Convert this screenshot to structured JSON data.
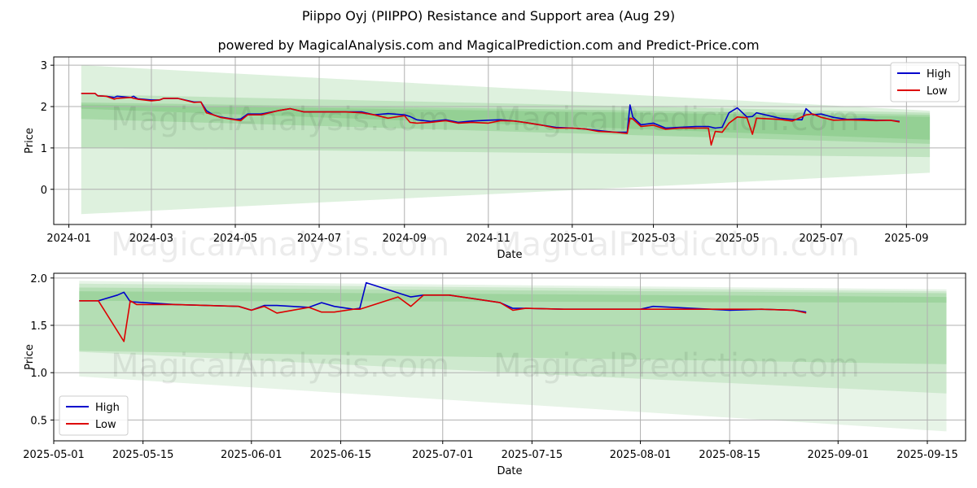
{
  "title": "Piippo Oyj (PIIPPO) Resistance and Support area (Aug 29)",
  "subtitle": "powered by MagicalAnalysis.com and MagicalPrediction.com and Predict-Price.com",
  "watermarks": [
    "MagicalAnalysis.com",
    "MagicalPrediction.com"
  ],
  "colors": {
    "high": "#0000cc",
    "low": "#dd0000",
    "band": "#5cb85c"
  },
  "chart_data": [
    {
      "type": "line",
      "xlabel": "Date",
      "ylabel": "Price",
      "xlim": [
        "2023-12-21",
        "2025-10-14"
      ],
      "ylim": [
        -0.85,
        3.2
      ],
      "xticks": [
        "2024-01",
        "2024-03",
        "2024-05",
        "2024-07",
        "2024-09",
        "2024-11",
        "2025-01",
        "2025-03",
        "2025-05",
        "2025-07",
        "2025-09"
      ],
      "yticks": [
        0,
        1,
        2,
        3
      ],
      "grid": true,
      "legend": "top-right",
      "bands": [
        {
          "x": [
            "2024-01-10",
            "2025-09-18"
          ],
          "upper": [
            3.0,
            1.9
          ],
          "lower": [
            -0.6,
            0.4
          ],
          "opacity": 0.2
        },
        {
          "x": [
            "2024-01-10",
            "2025-09-18"
          ],
          "upper": [
            2.3,
            1.85
          ],
          "lower": [
            1.0,
            0.78
          ],
          "opacity": 0.22
        },
        {
          "x": [
            "2024-01-10",
            "2025-09-18"
          ],
          "upper": [
            2.1,
            1.8
          ],
          "lower": [
            1.7,
            1.1
          ],
          "opacity": 0.25
        },
        {
          "x": [
            "2024-01-10",
            "2025-09-18"
          ],
          "upper": [
            2.05,
            1.75
          ],
          "lower": [
            1.95,
            1.2
          ],
          "opacity": 0.25
        }
      ],
      "series": [
        {
          "name": "High",
          "x": [
            "2024-01-10",
            "2024-01-20",
            "2024-01-22",
            "2024-01-28",
            "2024-02-03",
            "2024-02-05",
            "2024-02-15",
            "2024-02-17",
            "2024-02-20",
            "2024-03-01",
            "2024-03-07",
            "2024-03-10",
            "2024-03-20",
            "2024-04-01",
            "2024-04-06",
            "2024-04-10",
            "2024-04-15",
            "2024-04-20",
            "2024-05-01",
            "2024-05-05",
            "2024-05-10",
            "2024-05-20",
            "2024-06-01",
            "2024-06-10",
            "2024-06-20",
            "2024-07-01",
            "2024-07-20",
            "2024-08-01",
            "2024-08-10",
            "2024-08-20",
            "2024-09-01",
            "2024-09-05",
            "2024-09-10",
            "2024-09-20",
            "2024-10-01",
            "2024-10-10",
            "2024-10-20",
            "2024-11-01",
            "2024-11-10",
            "2024-11-20",
            "2024-12-01",
            "2024-12-10",
            "2024-12-20",
            "2025-01-01",
            "2025-01-10",
            "2025-01-20",
            "2025-02-01",
            "2025-02-10",
            "2025-02-12",
            "2025-02-14",
            "2025-02-20",
            "2025-03-01",
            "2025-03-10",
            "2025-03-20",
            "2025-04-01",
            "2025-04-10",
            "2025-04-15",
            "2025-04-20",
            "2025-04-25",
            "2025-05-01",
            "2025-05-08",
            "2025-05-12",
            "2025-05-15",
            "2025-06-01",
            "2025-06-10",
            "2025-06-17",
            "2025-06-20",
            "2025-06-25",
            "2025-07-01",
            "2025-07-10",
            "2025-07-20",
            "2025-08-01",
            "2025-08-10",
            "2025-08-20",
            "2025-08-27"
          ],
          "values": [
            2.32,
            2.32,
            2.26,
            2.25,
            2.22,
            2.25,
            2.22,
            2.25,
            2.19,
            2.16,
            2.16,
            2.2,
            2.2,
            2.11,
            2.11,
            1.9,
            1.8,
            1.75,
            1.69,
            1.7,
            1.82,
            1.82,
            1.9,
            1.95,
            1.87,
            1.87,
            1.87,
            1.87,
            1.8,
            1.83,
            1.8,
            1.76,
            1.68,
            1.64,
            1.68,
            1.62,
            1.65,
            1.67,
            1.68,
            1.65,
            1.6,
            1.55,
            1.5,
            1.48,
            1.46,
            1.42,
            1.38,
            1.38,
            2.04,
            1.75,
            1.56,
            1.6,
            1.48,
            1.5,
            1.52,
            1.52,
            1.48,
            1.5,
            1.85,
            1.97,
            1.75,
            1.76,
            1.85,
            1.72,
            1.69,
            1.68,
            1.95,
            1.8,
            1.82,
            1.74,
            1.69,
            1.7,
            1.67,
            1.67,
            1.64
          ]
        },
        {
          "name": "Low",
          "x": [
            "2024-01-10",
            "2024-01-20",
            "2024-01-22",
            "2024-01-28",
            "2024-02-03",
            "2024-02-05",
            "2024-02-15",
            "2024-02-17",
            "2024-02-20",
            "2024-03-01",
            "2024-03-07",
            "2024-03-10",
            "2024-03-20",
            "2024-04-01",
            "2024-04-06",
            "2024-04-10",
            "2024-04-15",
            "2024-04-20",
            "2024-05-01",
            "2024-05-05",
            "2024-05-10",
            "2024-05-20",
            "2024-06-01",
            "2024-06-10",
            "2024-06-20",
            "2024-07-01",
            "2024-07-20",
            "2024-08-01",
            "2024-08-10",
            "2024-08-20",
            "2024-09-01",
            "2024-09-05",
            "2024-09-10",
            "2024-09-20",
            "2024-10-01",
            "2024-10-10",
            "2024-10-20",
            "2024-11-01",
            "2024-11-10",
            "2024-11-20",
            "2024-12-01",
            "2024-12-10",
            "2024-12-20",
            "2025-01-01",
            "2025-01-10",
            "2025-01-20",
            "2025-02-01",
            "2025-02-10",
            "2025-02-12",
            "2025-02-14",
            "2025-02-20",
            "2025-03-01",
            "2025-03-10",
            "2025-03-20",
            "2025-04-01",
            "2025-04-10",
            "2025-04-12",
            "2025-04-15",
            "2025-04-20",
            "2025-04-25",
            "2025-05-01",
            "2025-05-08",
            "2025-05-12",
            "2025-05-15",
            "2025-06-01",
            "2025-06-10",
            "2025-06-17",
            "2025-06-20",
            "2025-06-25",
            "2025-07-01",
            "2025-07-10",
            "2025-07-20",
            "2025-08-01",
            "2025-08-10",
            "2025-08-20",
            "2025-08-27"
          ],
          "values": [
            2.32,
            2.32,
            2.26,
            2.25,
            2.18,
            2.2,
            2.22,
            2.2,
            2.18,
            2.14,
            2.16,
            2.2,
            2.2,
            2.1,
            2.11,
            1.85,
            1.8,
            1.74,
            1.68,
            1.66,
            1.8,
            1.8,
            1.9,
            1.95,
            1.87,
            1.87,
            1.87,
            1.85,
            1.8,
            1.72,
            1.78,
            1.62,
            1.6,
            1.62,
            1.66,
            1.6,
            1.62,
            1.6,
            1.66,
            1.65,
            1.6,
            1.55,
            1.48,
            1.48,
            1.46,
            1.4,
            1.38,
            1.35,
            1.72,
            1.7,
            1.52,
            1.55,
            1.45,
            1.48,
            1.48,
            1.48,
            1.07,
            1.4,
            1.38,
            1.6,
            1.75,
            1.73,
            1.33,
            1.72,
            1.69,
            1.65,
            1.75,
            1.8,
            1.82,
            1.74,
            1.67,
            1.68,
            1.67,
            1.66,
            1.67,
            1.63
          ]
        }
      ]
    },
    {
      "type": "line",
      "xlabel": "Date",
      "ylabel": "Price",
      "xlim": [
        "2025-05-01",
        "2025-09-21"
      ],
      "ylim": [
        0.28,
        2.05
      ],
      "xticks": [
        "2025-05-01",
        "2025-05-15",
        "2025-06-01",
        "2025-06-15",
        "2025-07-01",
        "2025-07-15",
        "2025-08-01",
        "2025-08-15",
        "2025-09-01",
        "2025-09-15"
      ],
      "yticks": [
        0.5,
        1.0,
        1.5,
        2.0
      ],
      "grid": true,
      "legend": "bottom-left",
      "bands": [
        {
          "x": [
            "2025-05-05",
            "2025-09-18"
          ],
          "upper": [
            1.97,
            1.88
          ],
          "lower": [
            0.96,
            0.38
          ],
          "opacity": 0.15
        },
        {
          "x": [
            "2025-05-05",
            "2025-09-18"
          ],
          "upper": [
            1.94,
            1.86
          ],
          "lower": [
            1.22,
            0.78
          ],
          "opacity": 0.18
        },
        {
          "x": [
            "2025-05-05",
            "2025-09-18"
          ],
          "upper": [
            1.9,
            1.84
          ],
          "lower": [
            1.23,
            1.09
          ],
          "opacity": 0.22
        },
        {
          "x": [
            "2025-05-05",
            "2025-09-18"
          ],
          "upper": [
            1.86,
            1.8
          ],
          "lower": [
            1.76,
            1.74
          ],
          "opacity": 0.25
        }
      ],
      "series": [
        {
          "name": "High",
          "x": [
            "2025-05-05",
            "2025-05-08",
            "2025-05-11",
            "2025-05-12",
            "2025-05-13",
            "2025-05-20",
            "2025-05-30",
            "2025-06-01",
            "2025-06-03",
            "2025-06-05",
            "2025-06-10",
            "2025-06-12",
            "2025-06-14",
            "2025-06-17",
            "2025-06-18",
            "2025-06-19",
            "2025-06-26",
            "2025-06-28",
            "2025-07-01",
            "2025-07-02",
            "2025-07-10",
            "2025-07-12",
            "2025-07-14",
            "2025-07-20",
            "2025-08-01",
            "2025-08-03",
            "2025-08-15",
            "2025-08-20",
            "2025-08-25",
            "2025-08-27"
          ],
          "values": [
            1.76,
            1.76,
            1.82,
            1.85,
            1.75,
            1.72,
            1.7,
            1.66,
            1.71,
            1.71,
            1.69,
            1.74,
            1.7,
            1.67,
            1.68,
            1.95,
            1.8,
            1.82,
            1.82,
            1.82,
            1.74,
            1.68,
            1.68,
            1.67,
            1.67,
            1.7,
            1.66,
            1.67,
            1.66,
            1.64
          ]
        },
        {
          "name": "Low",
          "x": [
            "2025-05-05",
            "2025-05-08",
            "2025-05-12",
            "2025-05-13",
            "2025-05-14",
            "2025-05-20",
            "2025-05-30",
            "2025-06-01",
            "2025-06-03",
            "2025-06-05",
            "2025-06-10",
            "2025-06-12",
            "2025-06-14",
            "2025-06-17",
            "2025-06-18",
            "2025-06-24",
            "2025-06-26",
            "2025-06-28",
            "2025-07-01",
            "2025-07-02",
            "2025-07-10",
            "2025-07-12",
            "2025-07-14",
            "2025-07-20",
            "2025-08-01",
            "2025-08-15",
            "2025-08-20",
            "2025-08-25",
            "2025-08-27"
          ],
          "values": [
            1.76,
            1.76,
            1.33,
            1.76,
            1.72,
            1.72,
            1.7,
            1.66,
            1.7,
            1.63,
            1.69,
            1.64,
            1.64,
            1.67,
            1.67,
            1.8,
            1.7,
            1.82,
            1.82,
            1.82,
            1.74,
            1.66,
            1.68,
            1.67,
            1.67,
            1.67,
            1.67,
            1.66,
            1.63
          ]
        }
      ]
    }
  ]
}
